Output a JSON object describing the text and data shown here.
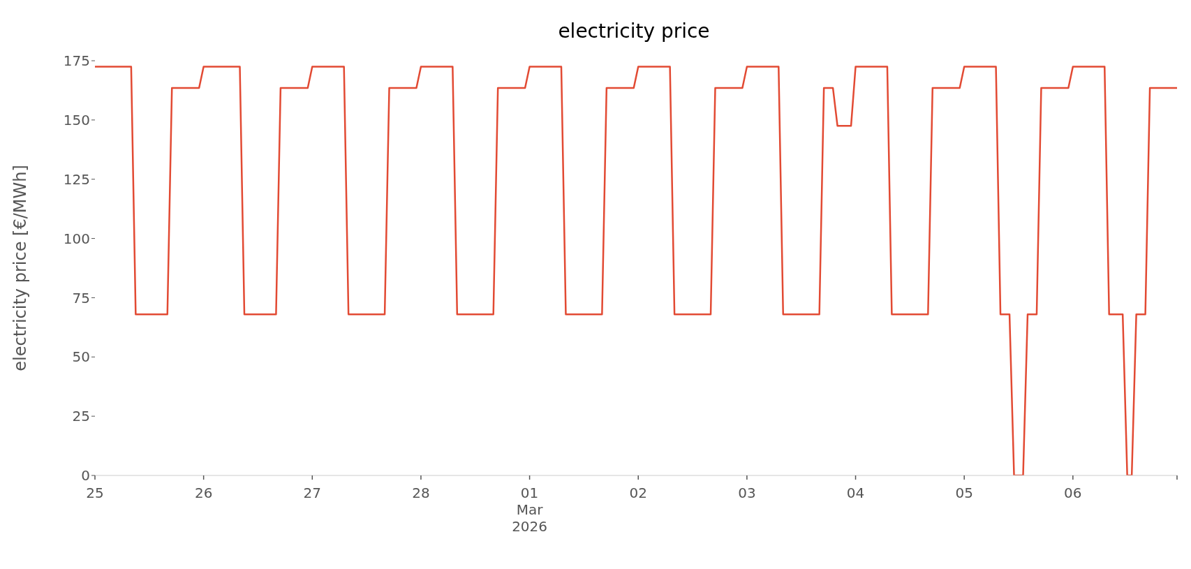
{
  "chart_data": {
    "type": "line",
    "title": "electricity price",
    "ylabel": "electricity price [€/MWh]",
    "x": [
      "2026-02-25T00:00",
      "2026-02-25T08:00",
      "2026-02-25T09:00",
      "2026-02-25T16:00",
      "2026-02-25T17:00",
      "2026-02-25T23:00",
      "2026-02-26T00:00",
      "2026-02-26T08:00",
      "2026-02-26T09:00",
      "2026-02-26T16:00",
      "2026-02-26T17:00",
      "2026-02-26T23:00",
      "2026-02-27T00:00",
      "2026-02-27T07:00",
      "2026-02-27T08:00",
      "2026-02-27T16:00",
      "2026-02-27T17:00",
      "2026-02-27T23:00",
      "2026-02-28T00:00",
      "2026-02-28T07:00",
      "2026-02-28T08:00",
      "2026-02-28T16:00",
      "2026-02-28T17:00",
      "2026-02-28T23:00",
      "2026-03-01T00:00",
      "2026-03-01T07:00",
      "2026-03-01T08:00",
      "2026-03-01T16:00",
      "2026-03-01T17:00",
      "2026-03-01T23:00",
      "2026-03-02T00:00",
      "2026-03-02T07:00",
      "2026-03-02T08:00",
      "2026-03-02T16:00",
      "2026-03-02T17:00",
      "2026-03-02T23:00",
      "2026-03-03T00:00",
      "2026-03-03T07:00",
      "2026-03-03T08:00",
      "2026-03-03T16:00",
      "2026-03-03T17:00",
      "2026-03-03T19:00",
      "2026-03-03T20:00",
      "2026-03-03T23:00",
      "2026-03-04T00:00",
      "2026-03-04T07:00",
      "2026-03-04T08:00",
      "2026-03-04T16:00",
      "2026-03-04T17:00",
      "2026-03-04T23:00",
      "2026-03-05T00:00",
      "2026-03-05T07:00",
      "2026-03-05T08:00",
      "2026-03-05T10:00",
      "2026-03-05T11:00",
      "2026-03-05T13:00",
      "2026-03-05T14:00",
      "2026-03-05T16:00",
      "2026-03-05T17:00",
      "2026-03-05T23:00",
      "2026-03-06T00:00",
      "2026-03-06T07:00",
      "2026-03-06T08:00",
      "2026-03-06T11:00",
      "2026-03-06T12:00",
      "2026-03-06T13:00",
      "2026-03-06T14:00",
      "2026-03-06T16:00",
      "2026-03-06T17:00",
      "2026-03-06T23:00"
    ],
    "values": [
      172.5,
      172.5,
      68,
      68,
      163.5,
      163.5,
      172.5,
      172.5,
      68,
      68,
      163.5,
      163.5,
      172.5,
      172.5,
      68,
      68,
      163.5,
      163.5,
      172.5,
      172.5,
      68,
      68,
      163.5,
      163.5,
      172.5,
      172.5,
      68,
      68,
      163.5,
      163.5,
      172.5,
      172.5,
      68,
      68,
      163.5,
      163.5,
      172.5,
      172.5,
      68,
      68,
      163.5,
      163.5,
      147.5,
      147.5,
      172.5,
      172.5,
      68,
      68,
      163.5,
      163.5,
      172.5,
      172.5,
      68,
      68,
      0,
      0,
      68,
      68,
      163.5,
      163.5,
      172.5,
      172.5,
      68,
      68,
      0,
      0,
      68,
      68,
      163.5,
      163.5
    ],
    "color": "#e24a33",
    "xlim": [
      "2026-02-25T00:00",
      "2026-03-06T23:00"
    ],
    "xticks": [
      {
        "value": "2026-02-25",
        "label": "25"
      },
      {
        "value": "2026-02-26",
        "label": "26"
      },
      {
        "value": "2026-02-27",
        "label": "27"
      },
      {
        "value": "2026-02-28",
        "label": "28"
      },
      {
        "value": "2026-03-01",
        "label": "01\nMar\n2026"
      },
      {
        "value": "2026-03-02",
        "label": "02"
      },
      {
        "value": "2026-03-03",
        "label": "03"
      },
      {
        "value": "2026-03-04",
        "label": "04"
      },
      {
        "value": "2026-03-05",
        "label": "05"
      },
      {
        "value": "2026-03-06",
        "label": "06"
      },
      {
        "value": "2026-03-06T23:00",
        "label": null
      }
    ],
    "ylim": [
      0,
      175
    ],
    "yticks": [
      0,
      25,
      50,
      75,
      100,
      125,
      150,
      175
    ]
  }
}
